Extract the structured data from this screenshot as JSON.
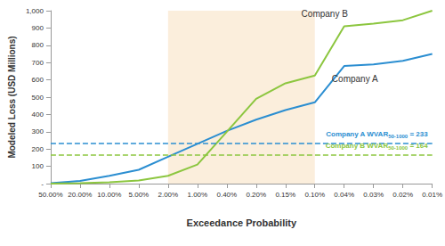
{
  "chart_data": {
    "type": "line",
    "x_label": "Exceedance Probability",
    "y_label": "Modeled Loss (USD Millions)",
    "categories": [
      "50.00%",
      "20.00%",
      "10.00%",
      "5.00%",
      "2.00%",
      "1.00%",
      "0.40%",
      "0.20%",
      "0.15%",
      "0.10%",
      "0.04%",
      "0.03%",
      "0.02%",
      "0.01%"
    ],
    "series": [
      {
        "name": "Company A",
        "color": "#2b8ed1",
        "values": [
          2,
          15,
          45,
          80,
          155,
          230,
          305,
          370,
          425,
          470,
          680,
          690,
          710,
          750
        ]
      },
      {
        "name": "Company B",
        "color": "#8cc63f",
        "values": [
          0,
          3,
          8,
          18,
          45,
          110,
          300,
          490,
          580,
          625,
          910,
          925,
          945,
          1000
        ]
      }
    ],
    "ylim": [
      0,
      1000
    ],
    "yticks": [
      {
        "value": 0,
        "label": "-"
      },
      100,
      200,
      300,
      400,
      500,
      600,
      700,
      800,
      900,
      {
        "value": 1000,
        "label": "1,000"
      }
    ],
    "grid": false,
    "highlight": {
      "from": "2.00%",
      "to": "0.10%",
      "color": "#fbeedc"
    },
    "reference_lines": [
      {
        "text": "Company A WVAR",
        "subscript": "50-1000",
        "value_label": "= 233",
        "value": 233,
        "color": "#2b8ed1",
        "line_style": "dashed"
      },
      {
        "text": "Company B WVAR",
        "subscript": "50-1000",
        "value_label": "= 164",
        "value": 164,
        "color": "#8cc63f",
        "line_style": "dashed"
      }
    ]
  }
}
